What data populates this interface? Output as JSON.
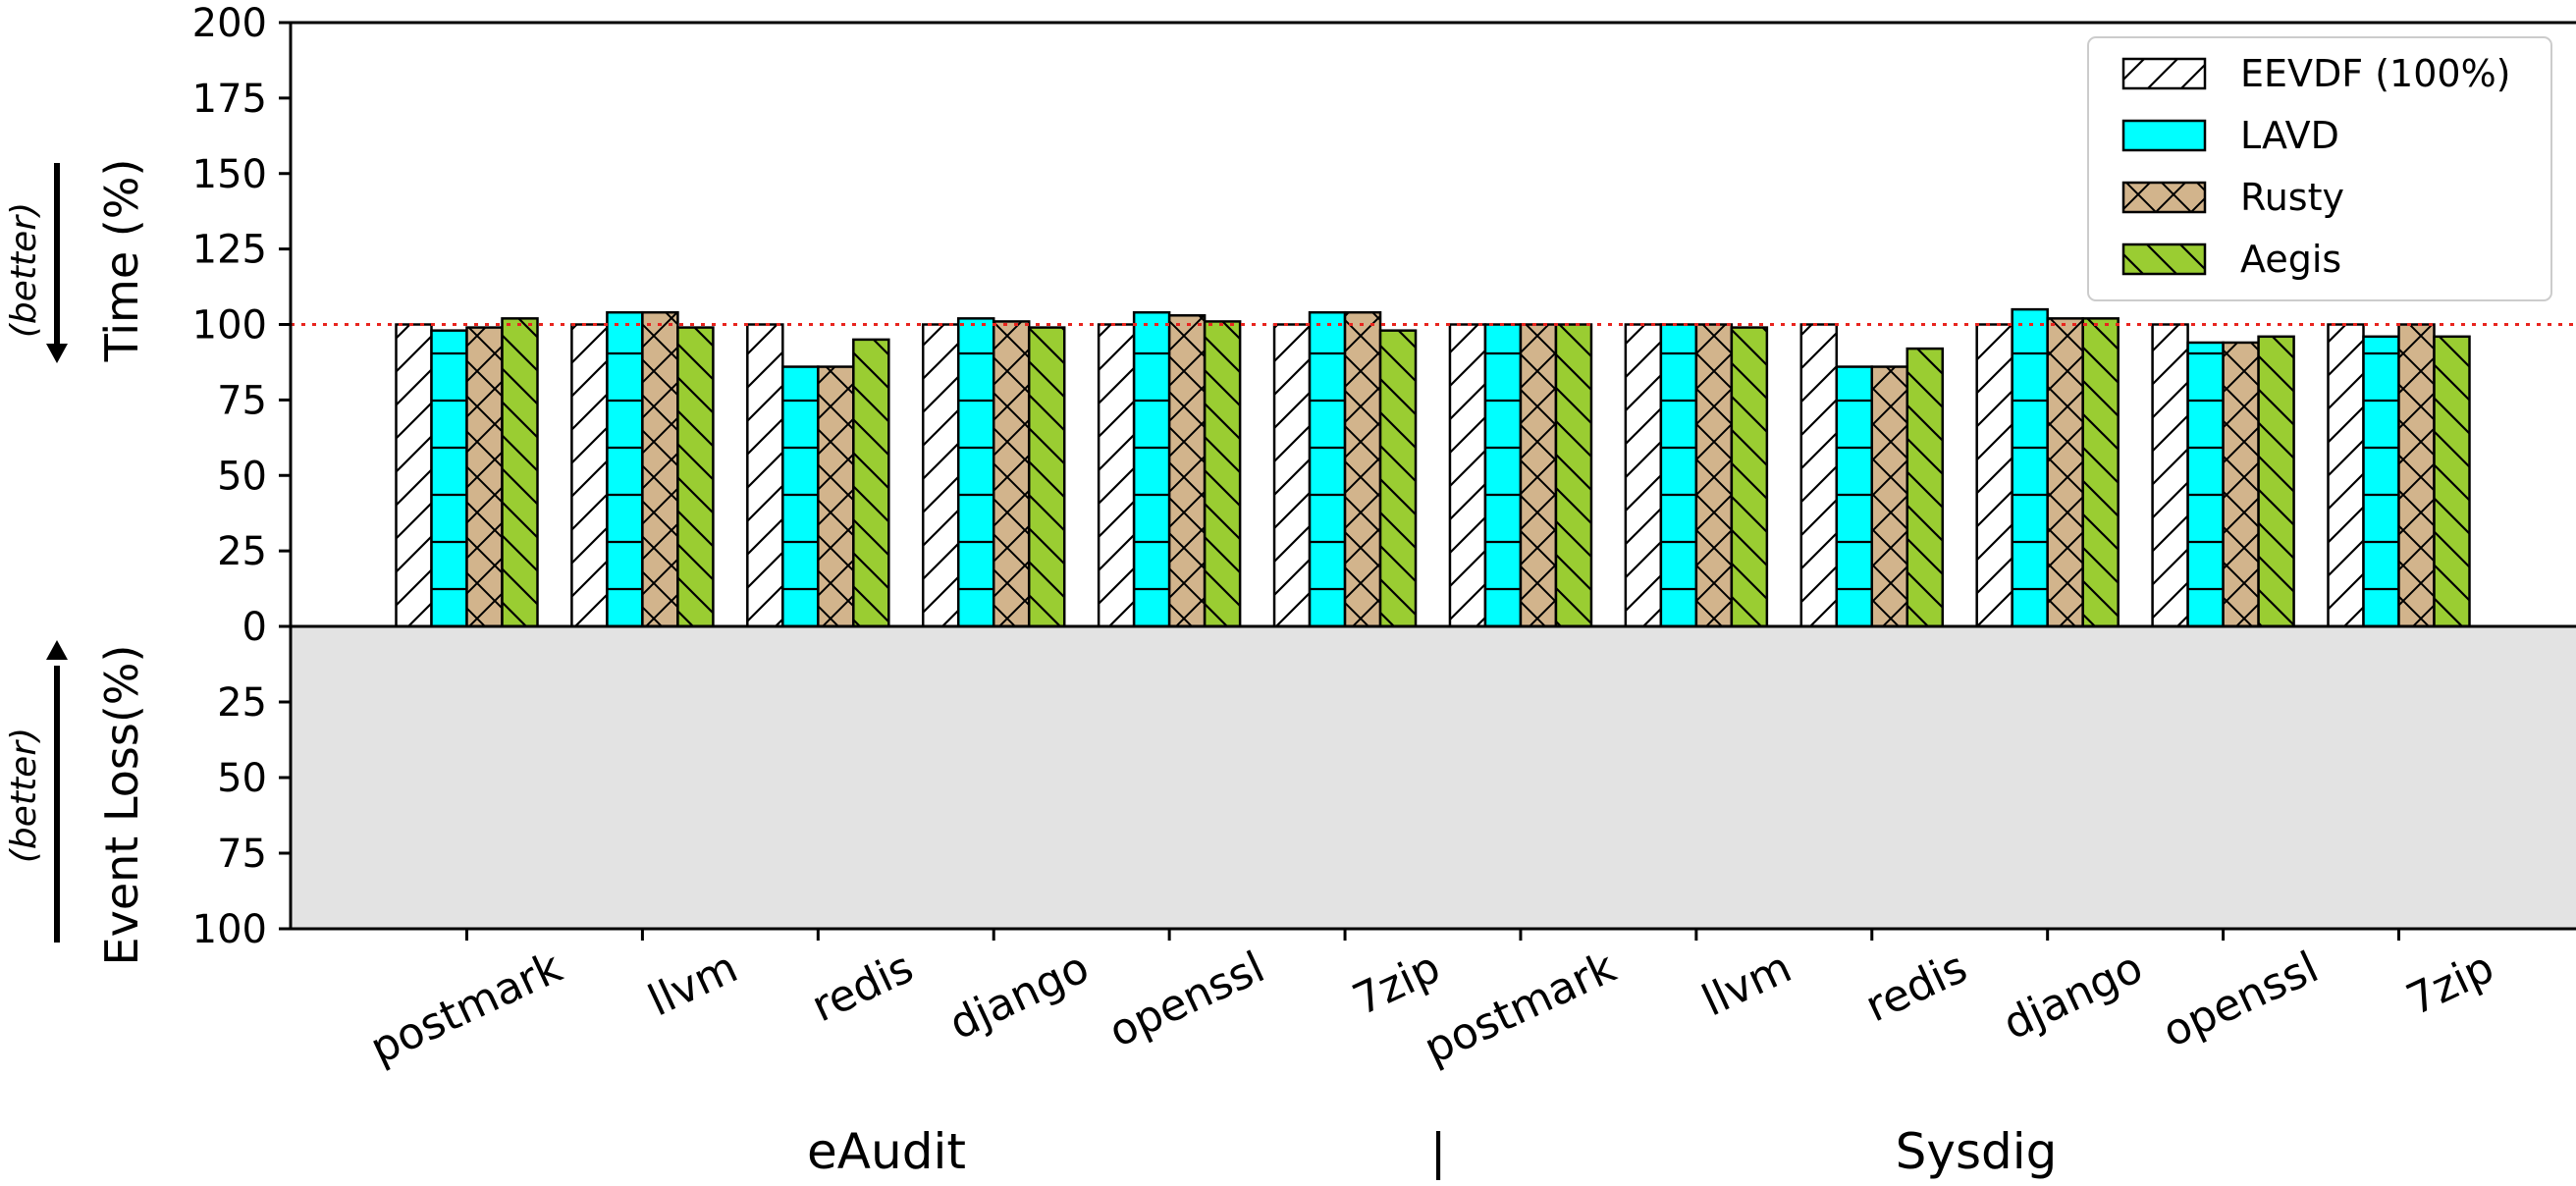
{
  "chart_data": {
    "type": "bar",
    "upper_panel": {
      "ylabel": "Time (%)",
      "ylim": [
        0,
        200
      ],
      "yticks": [
        "0",
        "25",
        "50",
        "75",
        "100",
        "125",
        "150",
        "175",
        "200"
      ],
      "reference_line": 100,
      "direction_note": "(better)"
    },
    "lower_panel": {
      "ylabel": "Event Loss(%)",
      "ylim": [
        0,
        100
      ],
      "inverted": true,
      "yticks": [
        "25",
        "50",
        "75",
        "100"
      ],
      "direction_note": "(better)"
    },
    "categories": [
      "postmark",
      "llvm",
      "redis",
      "django",
      "openssl",
      "7zip",
      "postmark",
      "llvm",
      "redis",
      "django",
      "openssl",
      "7zip"
    ],
    "groups": [
      {
        "name": "eAudit",
        "start": 0,
        "end": 5
      },
      {
        "name": "Sysdig",
        "start": 6,
        "end": 11
      }
    ],
    "group_separator": "|",
    "series": [
      {
        "name": "EEVDF (100%)",
        "color": "#ffffff",
        "hatch": "diag-right",
        "values": [
          100,
          100,
          100,
          100,
          100,
          100,
          100,
          100,
          100,
          100,
          100,
          100
        ]
      },
      {
        "name": "LAVD",
        "color": "#00ffff",
        "hatch": "horizontal",
        "values": [
          98,
          104,
          86,
          102,
          104,
          104,
          100,
          100,
          86,
          105,
          94,
          96
        ]
      },
      {
        "name": "Rusty",
        "color": "#d2b48c",
        "hatch": "cross",
        "values": [
          99,
          104,
          86,
          101,
          103,
          104,
          100,
          100,
          86,
          102,
          94,
          100
        ]
      },
      {
        "name": "Aegis",
        "color": "#9acd32",
        "hatch": "diag-left",
        "values": [
          102,
          99,
          95,
          99,
          101,
          98,
          100,
          99,
          92,
          102,
          96,
          96
        ]
      }
    ],
    "event_loss": {
      "EEVDF (100%)": [
        0,
        0,
        0,
        0,
        0,
        0,
        0,
        0,
        0,
        0,
        0,
        0
      ],
      "LAVD": [
        0,
        0,
        0,
        0,
        0,
        0,
        0,
        0,
        0,
        0,
        0,
        0
      ],
      "Rusty": [
        0,
        0,
        0,
        0,
        0,
        0,
        0,
        0,
        0,
        0,
        0,
        0
      ],
      "Aegis": [
        0,
        0,
        0,
        0,
        0,
        0,
        0,
        0,
        0,
        0,
        0,
        0
      ]
    },
    "legend": {
      "location": "top-right",
      "entries": [
        "EEVDF (100%)",
        "LAVD",
        "Rusty",
        "Aegis"
      ]
    }
  }
}
